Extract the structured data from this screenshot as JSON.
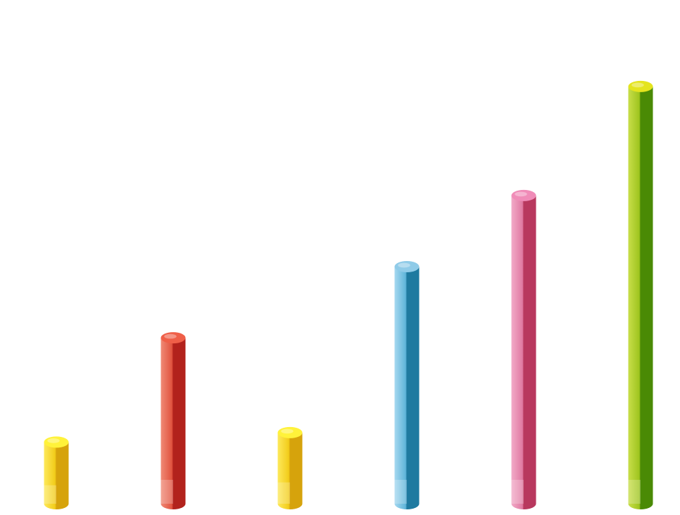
{
  "chart_data": {
    "type": "bar",
    "categories": [
      "",
      "",
      "",
      "",
      "",
      ""
    ],
    "values": [
      13,
      35,
      15,
      50,
      65,
      88
    ],
    "colors": [
      {
        "light": "#fde95a",
        "mid": "#f2cc1a",
        "dark": "#d6a30c",
        "top": "#fff23a"
      },
      {
        "light": "#f08a76",
        "mid": "#e0533f",
        "dark": "#b2221c",
        "top": "#ef5f48"
      },
      {
        "light": "#fde95a",
        "mid": "#f2cc1a",
        "dark": "#d6a30c",
        "top": "#fff23a"
      },
      {
        "light": "#a6d8f0",
        "mid": "#5fb5da",
        "dark": "#1f7aa0",
        "top": "#8fcbe8"
      },
      {
        "light": "#f2aac8",
        "mid": "#e07aa2",
        "dark": "#b8385e",
        "top": "#f08cb8"
      },
      {
        "light": "#c8de4a",
        "mid": "#9ec41e",
        "dark": "#4a8a05",
        "top": "#e4e41e"
      }
    ],
    "ylim": [
      0,
      100
    ],
    "grid": false,
    "legend": "none"
  }
}
